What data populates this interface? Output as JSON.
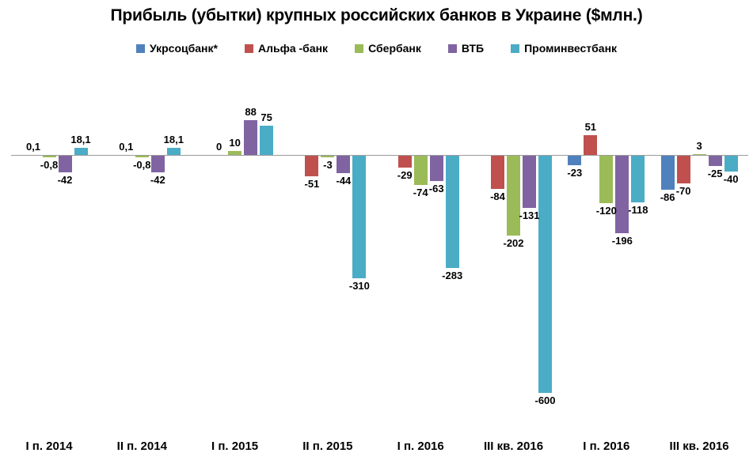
{
  "chart_data": {
    "type": "bar",
    "title": "Прибыль (убытки) крупных российских банков в Украине ($млн.)",
    "xlabel": "",
    "ylabel": "",
    "ylim": [
      -650,
      100
    ],
    "grid": false,
    "legend_position": "top",
    "axis_color": "#9b9b9b",
    "background_color": "#ffffff",
    "value_label_decimal_separator": ",",
    "categories": [
      "I п. 2014",
      "II п. 2014",
      "I п. 2015",
      "II п. 2015",
      "I п. 2016",
      "III кв. 2016",
      "I п. 2016",
      "III кв. 2016"
    ],
    "series": [
      {
        "name": "Укрсоцбанк*",
        "color": "#4F81BD",
        "values": [
          null,
          null,
          null,
          null,
          null,
          null,
          -23,
          -86
        ],
        "labels": [
          null,
          null,
          null,
          null,
          null,
          null,
          "-23",
          "-86"
        ]
      },
      {
        "name": "Альфа -банк",
        "color": "#C0504D",
        "values": [
          0.1,
          0.1,
          0,
          -51,
          -29,
          -84,
          51,
          -70
        ],
        "labels": [
          "0,1",
          "0,1",
          "0",
          "-51",
          "-29",
          "-84",
          "51",
          "-70"
        ]
      },
      {
        "name": "Сбербанк",
        "color": "#9BBB59",
        "values": [
          -0.8,
          -0.8,
          10,
          -3,
          -74,
          -202,
          -120,
          3
        ],
        "labels": [
          "-0,8",
          "-0,8",
          "10",
          "-3",
          "-74",
          "-202",
          "-120",
          "3"
        ]
      },
      {
        "name": "ВТБ",
        "color": "#8064A2",
        "values": [
          -42,
          -42,
          88,
          -44,
          -63,
          -131,
          -196,
          -25
        ],
        "labels": [
          "-42",
          "-42",
          "88",
          "-44",
          "-63",
          "-131",
          "-196",
          "-25"
        ]
      },
      {
        "name": "Проминвестбанк",
        "color": "#4BACC6",
        "values": [
          18.1,
          18.1,
          75,
          -310,
          -283,
          -600,
          -118,
          -40
        ],
        "labels": [
          "18,1",
          "18,1",
          "75",
          "-310",
          "-283",
          "-600",
          "-118",
          "-40"
        ]
      }
    ]
  }
}
